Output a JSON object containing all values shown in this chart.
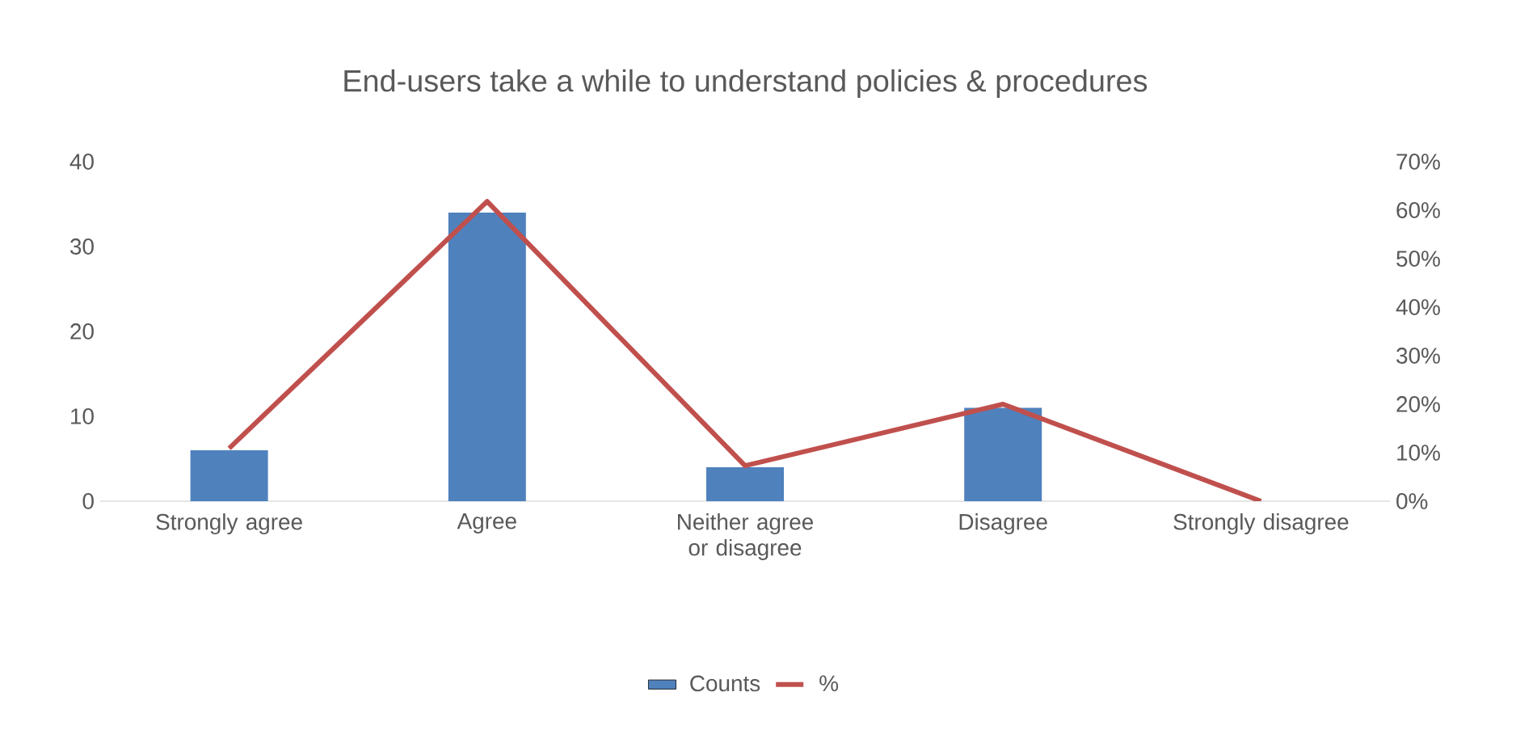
{
  "chart_data": {
    "type": "bar",
    "title": "End-users take a while to understand policies & procedures",
    "categories": [
      "Strongly agree",
      "Agree",
      "Neither agree or disagree",
      "Disagree",
      "Strongly disagree"
    ],
    "series": [
      {
        "name": "Counts",
        "color": "#4f81bd",
        "values": [
          6,
          34,
          4,
          11,
          0
        ]
      },
      {
        "name": "%",
        "type": "line",
        "axis": "y2",
        "color": "#c0504d",
        "values": [
          10.9,
          61.8,
          7.3,
          20,
          0
        ]
      }
    ],
    "ylim": [
      0,
      40
    ],
    "yticks": [
      0,
      10,
      20,
      30,
      40
    ],
    "y2lim": [
      0,
      70
    ],
    "y2ticks": [
      {
        "value": 0,
        "label": "0%"
      },
      {
        "value": 10,
        "label": "10%"
      },
      {
        "value": 20,
        "label": "20%"
      },
      {
        "value": 30,
        "label": "30%"
      },
      {
        "value": 40,
        "label": "40%"
      },
      {
        "value": 50,
        "label": "50%"
      },
      {
        "value": 60,
        "label": "60%"
      },
      {
        "value": 70,
        "label": "70%"
      }
    ],
    "legend": "bottom"
  }
}
